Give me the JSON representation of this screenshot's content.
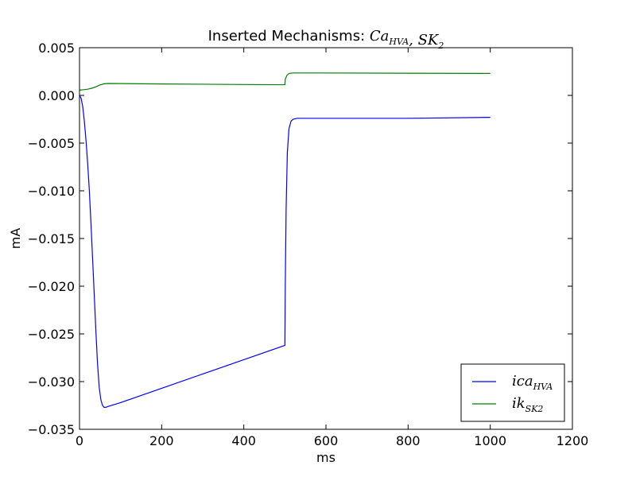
{
  "chart_data": {
    "type": "line",
    "title_prefix": "Inserted Mechanisms: ",
    "title_parts": [
      {
        "base": "Ca",
        "sub": "HVA"
      },
      {
        "sep": ", "
      },
      {
        "base": "SK",
        "sub": "2"
      }
    ],
    "xlabel": "ms",
    "ylabel": "mA",
    "xlim": [
      0,
      1200
    ],
    "ylim": [
      -0.035,
      0.005
    ],
    "x_ticks": [
      0,
      200,
      400,
      600,
      800,
      1000,
      1200
    ],
    "x_tick_labels": [
      "0",
      "200",
      "400",
      "600",
      "800",
      "1000",
      "1200"
    ],
    "y_ticks": [
      0.005,
      0.0,
      -0.005,
      -0.01,
      -0.015,
      -0.02,
      -0.025,
      -0.03,
      -0.035
    ],
    "y_tick_labels": [
      "0.005",
      "0.000",
      "−0.005",
      "−0.010",
      "−0.015",
      "−0.020",
      "−0.025",
      "−0.030",
      "−0.035"
    ],
    "grid": false,
    "legend_position": "lower-right",
    "series": [
      {
        "name_base": "ica",
        "name_sub": "HVA",
        "color": "#0000ff",
        "points": [
          [
            0,
            0.0
          ],
          [
            4,
            -0.0003
          ],
          [
            8,
            -0.0012
          ],
          [
            12,
            -0.0028
          ],
          [
            16,
            -0.0048
          ],
          [
            20,
            -0.0072
          ],
          [
            24,
            -0.01
          ],
          [
            28,
            -0.0135
          ],
          [
            32,
            -0.0172
          ],
          [
            36,
            -0.021
          ],
          [
            40,
            -0.0248
          ],
          [
            44,
            -0.0282
          ],
          [
            48,
            -0.0306
          ],
          [
            52,
            -0.0319
          ],
          [
            56,
            -0.0325
          ],
          [
            60,
            -0.0327
          ],
          [
            64,
            -0.0327
          ],
          [
            70,
            -0.0326
          ],
          [
            100,
            -0.0322
          ],
          [
            200,
            -0.0307
          ],
          [
            300,
            -0.0292
          ],
          [
            400,
            -0.0277
          ],
          [
            500,
            -0.0262
          ],
          [
            501,
            -0.02
          ],
          [
            503,
            -0.012
          ],
          [
            506,
            -0.006
          ],
          [
            510,
            -0.0035
          ],
          [
            515,
            -0.0027
          ],
          [
            520,
            -0.0025
          ],
          [
            530,
            -0.0024
          ],
          [
            600,
            -0.0024
          ],
          [
            800,
            -0.0024
          ],
          [
            1000,
            -0.0023
          ]
        ]
      },
      {
        "name_base": "ik",
        "name_sub": "SK2",
        "color": "#008000",
        "points": [
          [
            0,
            0.00055
          ],
          [
            10,
            0.0006
          ],
          [
            20,
            0.00065
          ],
          [
            30,
            0.00075
          ],
          [
            40,
            0.0009
          ],
          [
            50,
            0.0011
          ],
          [
            60,
            0.00122
          ],
          [
            70,
            0.00125
          ],
          [
            100,
            0.00124
          ],
          [
            200,
            0.0012
          ],
          [
            300,
            0.00117
          ],
          [
            400,
            0.00114
          ],
          [
            500,
            0.00112
          ],
          [
            501,
            0.0017
          ],
          [
            505,
            0.0021
          ],
          [
            510,
            0.0023
          ],
          [
            520,
            0.00235
          ],
          [
            600,
            0.00235
          ],
          [
            800,
            0.00232
          ],
          [
            1000,
            0.0023
          ]
        ]
      }
    ]
  }
}
